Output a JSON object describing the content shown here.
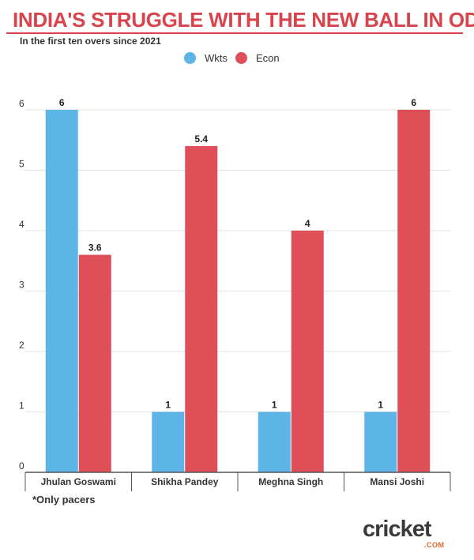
{
  "header": {
    "title": "INDIA'S STRUGGLE WITH THE NEW BALL IN ODIS",
    "subtitle": "In the first ten overs since 2021"
  },
  "footnote": "*Only pacers",
  "logo": {
    "main": "cricket",
    "sub": ".COM"
  },
  "colors": {
    "accent": "#d9434b",
    "wkts": "#5db4e6",
    "econ": "#de4f58"
  },
  "chart_data": {
    "type": "bar",
    "title": "INDIA'S STRUGGLE WITH THE NEW BALL IN ODIS",
    "subtitle": "In the first ten overs since 2021",
    "categories": [
      "Jhulan Goswami",
      "Shikha Pandey",
      "Meghna Singh",
      "Mansi Joshi"
    ],
    "series": [
      {
        "name": "Wkts",
        "color": "#5db4e6",
        "values": [
          6,
          1,
          1,
          1
        ],
        "labels": [
          "6",
          "1",
          "1",
          "1"
        ]
      },
      {
        "name": "Econ",
        "color": "#de4f58",
        "values": [
          3.6,
          5.4,
          4,
          6
        ],
        "labels": [
          "3.6",
          "5.4",
          "4",
          "6"
        ]
      }
    ],
    "y_ticks": [
      "0",
      "1",
      "2",
      "3",
      "4",
      "5",
      "6"
    ],
    "ylim": [
      0,
      6
    ],
    "xlabel": "",
    "ylabel": "",
    "grid": true,
    "legend": "top-center"
  }
}
